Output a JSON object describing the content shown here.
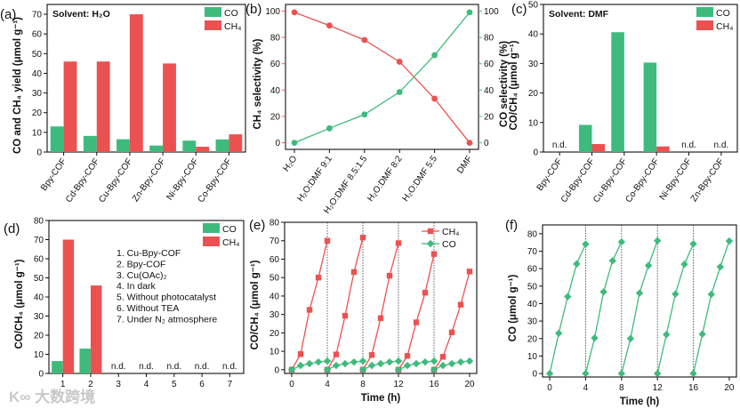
{
  "colors": {
    "CO": "#3dbb7c",
    "CH4": "#ec5151",
    "axis": "#111111"
  },
  "watermark": "大数跨境",
  "chart_data": [
    {
      "id": "a",
      "type": "bar",
      "panel_label": "(a)",
      "ylabel": "CO and CH₄ yield (μmol g⁻¹)",
      "ylim": [
        0,
        75
      ],
      "yticks": [
        0,
        10,
        20,
        30,
        40,
        50,
        60,
        70
      ],
      "annotation": "Solvent: H₂O",
      "categories": [
        "Bpy-COF",
        "Cd-Bpy-COF",
        "Cu-Bpy-COF",
        "Zn-Bpy-COF",
        "Ni-Bpy-COF",
        "Co-Bpy-COF"
      ],
      "series": [
        {
          "name": "CO",
          "values": [
            13,
            8.2,
            6.5,
            3.3,
            5.8,
            6.4
          ]
        },
        {
          "name": "CH₄",
          "values": [
            46,
            46,
            70,
            45,
            2.7,
            9
          ]
        }
      ],
      "legend": "top-right"
    },
    {
      "id": "b",
      "type": "line",
      "panel_label": "(b)",
      "ylabel": "CH₄ selectivity (%)",
      "ylabel_right": "CO selectivity (%)",
      "ylim": [
        -5,
        105
      ],
      "yticks": [
        0,
        20,
        40,
        60,
        80,
        100
      ],
      "yticks_right": [
        0,
        20,
        40,
        60,
        80,
        100
      ],
      "categories": [
        "H₂O",
        "H₂O:DMF 9:1",
        "H₂O:DMF 8.5:1.5",
        "H₂O:DMF 8:2",
        "H₂O:DMF 5:5",
        "DMF"
      ],
      "series": [
        {
          "name": "CH₄ selectivity",
          "axis": "left",
          "values": [
            99,
            89,
            78,
            61.5,
            33.5,
            0
          ]
        },
        {
          "name": "CO selectivity",
          "axis": "right",
          "values": [
            0,
            11,
            21.5,
            38.5,
            66.5,
            99
          ]
        }
      ]
    },
    {
      "id": "c",
      "type": "bar",
      "panel_label": "(c)",
      "ylabel": "CO/CH₄ (μmol g⁻¹)",
      "ylim": [
        0,
        50
      ],
      "yticks": [
        0,
        10,
        20,
        30,
        40,
        50
      ],
      "annotation": "Solvent: DMF",
      "categories": [
        "Bpy-COF",
        "Cd-Bpy-COF",
        "Cu-Bpy-COF",
        "Co-Bpy-COF",
        "Ni-Bpy-COF",
        "Zn-Bpy-COF"
      ],
      "series": [
        {
          "name": "CO",
          "values": [
            null,
            9.2,
            40.6,
            30.3,
            null,
            null
          ]
        },
        {
          "name": "CH₄",
          "values": [
            null,
            2.7,
            0,
            1.9,
            null,
            null
          ]
        }
      ],
      "nd_label": "n.d.",
      "nd_indices": [
        0,
        4,
        5
      ],
      "legend": "top-right"
    },
    {
      "id": "d",
      "type": "bar",
      "panel_label": "(d)",
      "ylabel": "CO/CH₄ (μmol g⁻¹)",
      "ylim": [
        0,
        80
      ],
      "yticks": [
        0,
        10,
        20,
        30,
        40,
        50,
        60,
        70,
        80
      ],
      "categories": [
        "1",
        "2",
        "3",
        "4",
        "5",
        "6",
        "7"
      ],
      "series": [
        {
          "name": "CO",
          "values": [
            6.5,
            13,
            null,
            null,
            null,
            null,
            null
          ]
        },
        {
          "name": "CH₄",
          "values": [
            70,
            46,
            null,
            null,
            null,
            null,
            null
          ]
        }
      ],
      "nd_label": "n.d.",
      "nd_indices": [
        2,
        3,
        4,
        5,
        6
      ],
      "conditions": [
        "1. Cu-Bpy-COF",
        "2. Bpy-COF",
        "3. Cu(OAc)₂",
        "4. In dark",
        "5. Without photocatalyst",
        "6. Without TEA",
        "7. Under N₂ atmosphere"
      ],
      "legend": "top-right"
    },
    {
      "id": "e",
      "type": "line",
      "panel_label": "(e)",
      "xlabel": "Time (h)",
      "ylabel": "CO/CH₄ (μmol g⁻¹)",
      "xlim": [
        -0.8,
        20.8
      ],
      "xticks": [
        0,
        4,
        8,
        12,
        16,
        20
      ],
      "ylim": [
        -2,
        80
      ],
      "yticks": [
        0,
        10,
        20,
        30,
        40,
        50,
        60,
        70,
        80
      ],
      "cycle_starts": [
        0,
        4,
        8,
        12,
        16
      ],
      "x_in_cycle": [
        0,
        1,
        2,
        3,
        4
      ],
      "series": [
        {
          "name": "CH₄",
          "marker": "square",
          "cycles": [
            [
              0,
              8.5,
              32.5,
              50,
              70
            ],
            [
              0,
              8.3,
              29.3,
              53,
              71.7
            ],
            [
              0,
              8,
              28,
              51,
              68.7
            ],
            [
              0,
              7.5,
              25.7,
              41.8,
              62.8
            ],
            [
              0,
              7,
              20.3,
              35.3,
              53.3
            ]
          ]
        },
        {
          "name": "CO",
          "marker": "diamond",
          "cycles": [
            [
              0,
              2.3,
              3.3,
              4.2,
              4.7
            ],
            [
              0,
              2.3,
              3.3,
              4.2,
              4.7
            ],
            [
              0,
              2.3,
              3.3,
              4.2,
              4.7
            ],
            [
              0,
              2.3,
              3.3,
              4.2,
              4.7
            ],
            [
              0,
              2.3,
              3.3,
              4.2,
              4.7
            ]
          ]
        }
      ],
      "legend": "top-right"
    },
    {
      "id": "f",
      "type": "line",
      "panel_label": "(f)",
      "xlabel": "Time (h)",
      "ylabel": "CO (μmol g⁻¹)",
      "xlim": [
        -0.8,
        20.8
      ],
      "xticks": [
        0,
        4,
        8,
        12,
        16,
        20
      ],
      "ylim": [
        -2,
        85
      ],
      "yticks": [
        0,
        10,
        20,
        30,
        40,
        50,
        60,
        70,
        80
      ],
      "cycle_starts": [
        0,
        4,
        8,
        12,
        16
      ],
      "x_in_cycle": [
        0,
        1,
        2,
        3,
        4
      ],
      "series": [
        {
          "name": "CO",
          "marker": "diamond",
          "cycles": [
            [
              0,
              23,
              44,
              62.7,
              74
            ],
            [
              0,
              20.3,
              46.7,
              64.5,
              75.3
            ],
            [
              0,
              20,
              46,
              61.8,
              76
            ],
            [
              0,
              22.3,
              45.5,
              62.5,
              74.2
            ],
            [
              0,
              22.5,
              45.3,
              61,
              75.8
            ]
          ]
        }
      ]
    }
  ]
}
